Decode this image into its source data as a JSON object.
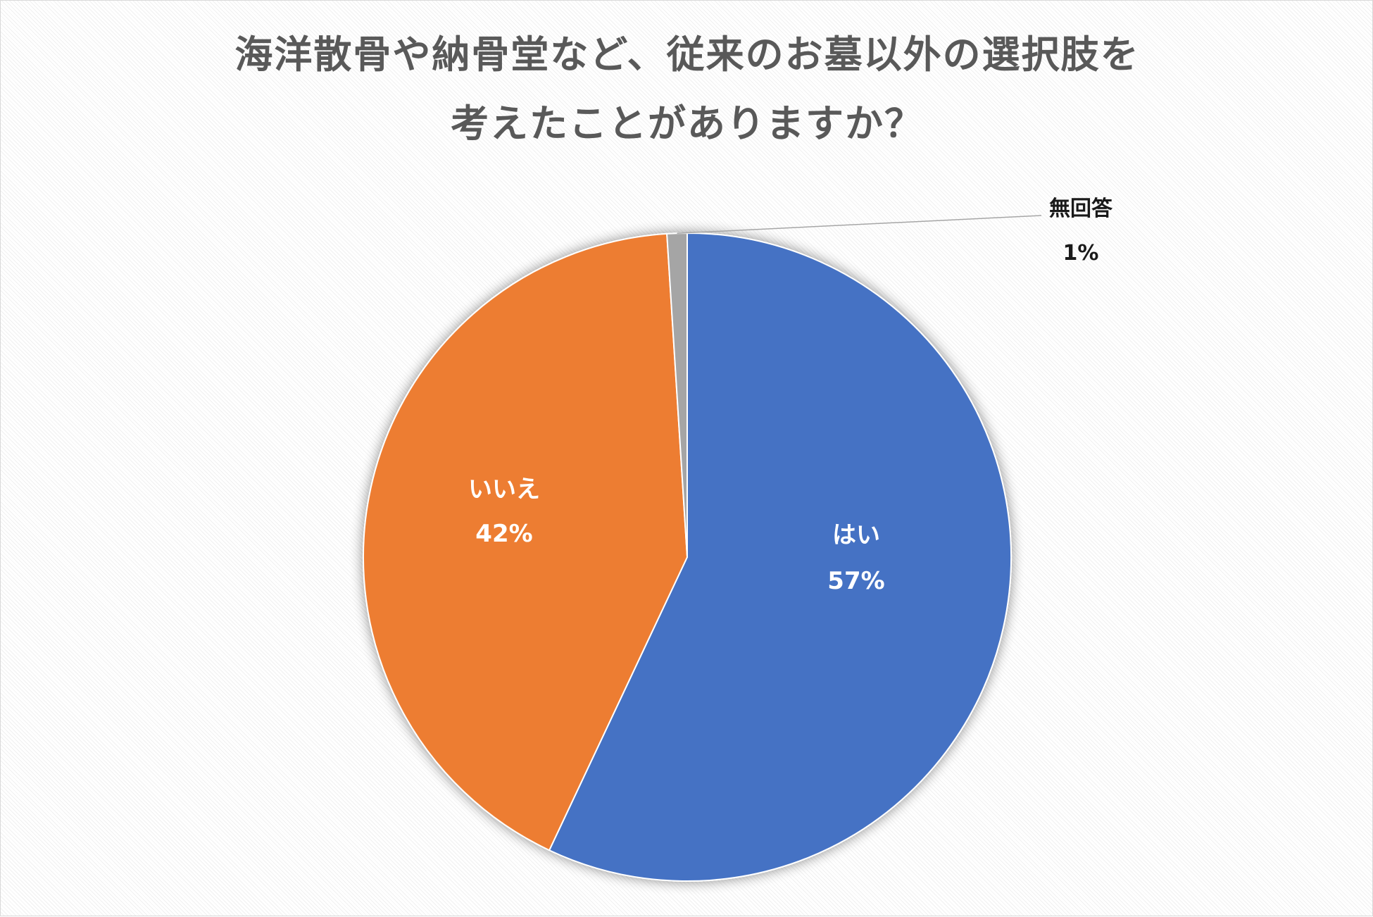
{
  "chart_data": {
    "type": "pie",
    "title": [
      "海洋散骨や納骨堂など、従来のお墓以外の選択肢を",
      "考えたことがありますか？"
    ],
    "categories": [
      "はい",
      "いいえ",
      "無回答"
    ],
    "values": [
      57,
      42,
      1
    ],
    "value_labels": [
      "57%",
      "42%",
      "1%"
    ],
    "colors": [
      "#4472c4",
      "#ed7d31",
      "#a5a5a5"
    ],
    "start_angle": "12 o'clock",
    "direction": "clockwise",
    "legend": "none"
  }
}
